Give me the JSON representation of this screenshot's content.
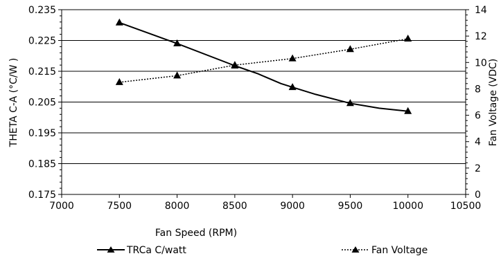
{
  "chart_data": {
    "type": "line",
    "xlabel": "Fan Speed (RPM)",
    "ylabel": "THETA C-A (°C/W )",
    "y2label": "Fan Voltage (VDC)",
    "xlim": [
      7000,
      10500
    ],
    "ylim": [
      0.175,
      0.235
    ],
    "y2lim": [
      0,
      14
    ],
    "x_ticks": [
      7000,
      7500,
      8000,
      8500,
      9000,
      9500,
      10000,
      10500
    ],
    "x_tick_labels": [
      "7000",
      "7500",
      "8000",
      "8500",
      "9000",
      "9500",
      "10000",
      "10500"
    ],
    "y_ticks": [
      0.175,
      0.185,
      0.195,
      0.205,
      0.215,
      0.225,
      0.235
    ],
    "y_tick_labels": [
      "0.175",
      "0.185",
      "0.195",
      "0.205",
      "0.215",
      "0.225",
      "0.235"
    ],
    "y2_ticks": [
      0,
      2,
      4,
      6,
      8,
      10,
      12,
      14
    ],
    "y2_tick_labels": [
      "0",
      "2",
      "4",
      "6",
      "8",
      "10",
      "12",
      "14"
    ],
    "grid": "horizontal",
    "legend_position": "bottom",
    "series": [
      {
        "name": "TRCa C/watt",
        "axis": "left",
        "style": "solid",
        "marker": "triangle",
        "markers_x": [
          7500,
          8000,
          8500,
          9000,
          9500,
          10000
        ],
        "x": [
          7500,
          8000,
          8500,
          8700,
          8900,
          9000,
          9200,
          9500,
          9750,
          10000
        ],
        "values": [
          0.2308,
          0.224,
          0.2168,
          0.2142,
          0.211,
          0.2098,
          0.2075,
          0.2046,
          0.203,
          0.202
        ]
      },
      {
        "name": "Fan Voltage",
        "axis": "right",
        "style": "dotted",
        "marker": "triangle",
        "markers_x": [
          7500,
          8000,
          8500,
          9000,
          9500,
          10000
        ],
        "x": [
          7500,
          8000,
          8500,
          9000,
          9500,
          10000
        ],
        "values": [
          8.5,
          9.0,
          9.8,
          10.3,
          11.0,
          11.8
        ]
      }
    ]
  }
}
